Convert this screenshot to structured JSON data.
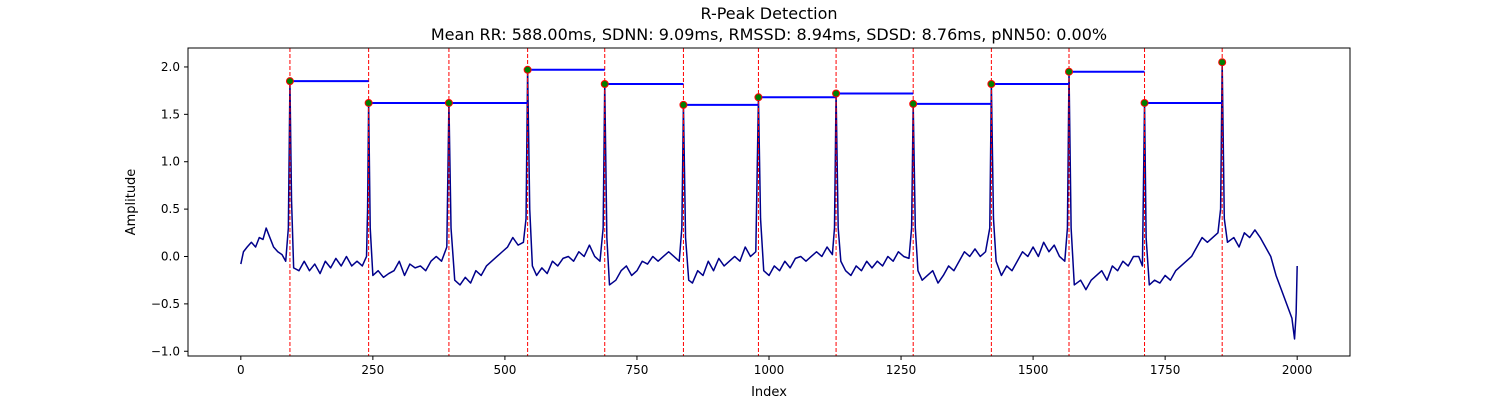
{
  "chart_data": {
    "type": "line",
    "title": "R-Peak Detection",
    "subtitle": "Mean RR: 588.00ms, SDNN: 9.09ms, RMSSD: 8.94ms, SDSD: 8.76ms, pNN50: 0.00%",
    "xlabel": "Index",
    "ylabel": "Amplitude",
    "xlim": [
      -100,
      2100
    ],
    "ylim": [
      -1.05,
      2.2
    ],
    "x_ticks": [
      0,
      250,
      500,
      750,
      1000,
      1250,
      1500,
      1750,
      2000
    ],
    "y_ticks": [
      -1.0,
      -0.5,
      0.0,
      0.5,
      1.0,
      1.5,
      2.0
    ],
    "x_tick_labels": [
      "0",
      "250",
      "500",
      "750",
      "1000",
      "1250",
      "1500",
      "1750",
      "2000"
    ],
    "y_tick_labels": [
      "−1.0",
      "−0.5",
      "0.0",
      "0.5",
      "1.0",
      "1.5",
      "2.0"
    ],
    "grid": false,
    "colors": {
      "signal": "#00008b",
      "peak_line": "#ff0000",
      "peak_marker": "#008000",
      "peak_marker_edge": "#ff0000",
      "rr_segment": "#0000ff"
    },
    "series": [
      {
        "kind": "ecg_signal",
        "points": [
          [
            0,
            -0.08
          ],
          [
            5,
            0.05
          ],
          [
            12,
            0.1
          ],
          [
            20,
            0.15
          ],
          [
            28,
            0.1
          ],
          [
            35,
            0.2
          ],
          [
            42,
            0.18
          ],
          [
            48,
            0.3
          ],
          [
            55,
            0.2
          ],
          [
            62,
            0.1
          ],
          [
            70,
            0.05
          ],
          [
            78,
            0.02
          ],
          [
            85,
            -0.05
          ],
          [
            90,
            0.3
          ],
          [
            93,
            1.85
          ],
          [
            96,
            0.6
          ],
          [
            100,
            -0.12
          ],
          [
            110,
            -0.15
          ],
          [
            120,
            -0.05
          ],
          [
            130,
            -0.15
          ],
          [
            140,
            -0.08
          ],
          [
            150,
            -0.18
          ],
          [
            160,
            -0.05
          ],
          [
            170,
            -0.12
          ],
          [
            180,
            -0.02
          ],
          [
            190,
            -0.1
          ],
          [
            200,
            0.0
          ],
          [
            210,
            -0.1
          ],
          [
            220,
            -0.05
          ],
          [
            230,
            -0.1
          ],
          [
            238,
            0.0
          ],
          [
            240,
            0.5
          ],
          [
            242,
            1.62
          ],
          [
            245,
            0.3
          ],
          [
            250,
            -0.2
          ],
          [
            260,
            -0.15
          ],
          [
            270,
            -0.22
          ],
          [
            280,
            -0.18
          ],
          [
            290,
            -0.15
          ],
          [
            300,
            -0.05
          ],
          [
            310,
            -0.2
          ],
          [
            320,
            -0.08
          ],
          [
            330,
            -0.12
          ],
          [
            340,
            -0.1
          ],
          [
            350,
            -0.15
          ],
          [
            360,
            -0.05
          ],
          [
            370,
            0.0
          ],
          [
            380,
            -0.05
          ],
          [
            390,
            0.1
          ],
          [
            394,
            1.62
          ],
          [
            398,
            0.3
          ],
          [
            405,
            -0.25
          ],
          [
            415,
            -0.3
          ],
          [
            425,
            -0.22
          ],
          [
            435,
            -0.28
          ],
          [
            445,
            -0.15
          ],
          [
            455,
            -0.2
          ],
          [
            465,
            -0.1
          ],
          [
            475,
            -0.05
          ],
          [
            485,
            0.0
          ],
          [
            495,
            0.05
          ],
          [
            505,
            0.1
          ],
          [
            515,
            0.2
          ],
          [
            525,
            0.12
          ],
          [
            535,
            0.15
          ],
          [
            540,
            0.4
          ],
          [
            543,
            1.97
          ],
          [
            547,
            0.5
          ],
          [
            552,
            -0.1
          ],
          [
            560,
            -0.2
          ],
          [
            570,
            -0.12
          ],
          [
            580,
            -0.18
          ],
          [
            590,
            -0.05
          ],
          [
            600,
            -0.1
          ],
          [
            610,
            -0.02
          ],
          [
            620,
            0.0
          ],
          [
            630,
            -0.05
          ],
          [
            640,
            0.05
          ],
          [
            650,
            0.0
          ],
          [
            660,
            0.12
          ],
          [
            670,
            0.0
          ],
          [
            680,
            -0.05
          ],
          [
            686,
            0.3
          ],
          [
            689,
            1.82
          ],
          [
            693,
            0.2
          ],
          [
            698,
            -0.3
          ],
          [
            710,
            -0.25
          ],
          [
            720,
            -0.15
          ],
          [
            730,
            -0.1
          ],
          [
            740,
            -0.2
          ],
          [
            750,
            -0.15
          ],
          [
            760,
            -0.05
          ],
          [
            770,
            -0.08
          ],
          [
            780,
            0.0
          ],
          [
            790,
            -0.05
          ],
          [
            800,
            0.0
          ],
          [
            810,
            0.05
          ],
          [
            820,
            0.0
          ],
          [
            830,
            -0.05
          ],
          [
            835,
            0.3
          ],
          [
            838,
            1.6
          ],
          [
            842,
            0.2
          ],
          [
            848,
            -0.25
          ],
          [
            855,
            -0.28
          ],
          [
            865,
            -0.15
          ],
          [
            875,
            -0.2
          ],
          [
            885,
            -0.05
          ],
          [
            895,
            -0.15
          ],
          [
            905,
            -0.02
          ],
          [
            915,
            -0.1
          ],
          [
            925,
            -0.05
          ],
          [
            935,
            0.0
          ],
          [
            945,
            -0.05
          ],
          [
            955,
            0.1
          ],
          [
            965,
            0.0
          ],
          [
            975,
            0.05
          ],
          [
            980,
            1.68
          ],
          [
            984,
            0.4
          ],
          [
            990,
            -0.15
          ],
          [
            1000,
            -0.2
          ],
          [
            1010,
            -0.1
          ],
          [
            1020,
            -0.15
          ],
          [
            1030,
            -0.05
          ],
          [
            1040,
            -0.12
          ],
          [
            1050,
            -0.02
          ],
          [
            1060,
            0.0
          ],
          [
            1070,
            -0.05
          ],
          [
            1080,
            0.0
          ],
          [
            1090,
            0.05
          ],
          [
            1100,
            0.0
          ],
          [
            1110,
            0.1
          ],
          [
            1120,
            0.02
          ],
          [
            1124,
            0.3
          ],
          [
            1127,
            1.72
          ],
          [
            1131,
            0.3
          ],
          [
            1136,
            -0.05
          ],
          [
            1145,
            -0.15
          ],
          [
            1155,
            -0.2
          ],
          [
            1165,
            -0.1
          ],
          [
            1175,
            -0.15
          ],
          [
            1185,
            -0.05
          ],
          [
            1195,
            -0.12
          ],
          [
            1205,
            -0.05
          ],
          [
            1215,
            -0.1
          ],
          [
            1225,
            0.0
          ],
          [
            1235,
            -0.05
          ],
          [
            1245,
            0.05
          ],
          [
            1255,
            0.0
          ],
          [
            1265,
            -0.02
          ],
          [
            1270,
            0.3
          ],
          [
            1273,
            1.61
          ],
          [
            1277,
            0.3
          ],
          [
            1282,
            -0.15
          ],
          [
            1290,
            -0.25
          ],
          [
            1300,
            -0.2
          ],
          [
            1310,
            -0.15
          ],
          [
            1320,
            -0.28
          ],
          [
            1330,
            -0.2
          ],
          [
            1340,
            -0.1
          ],
          [
            1350,
            -0.15
          ],
          [
            1360,
            -0.05
          ],
          [
            1370,
            0.05
          ],
          [
            1380,
            0.0
          ],
          [
            1390,
            0.08
          ],
          [
            1400,
            0.0
          ],
          [
            1410,
            0.05
          ],
          [
            1418,
            0.3
          ],
          [
            1421,
            1.82
          ],
          [
            1425,
            0.4
          ],
          [
            1430,
            -0.05
          ],
          [
            1440,
            -0.2
          ],
          [
            1450,
            -0.1
          ],
          [
            1460,
            -0.15
          ],
          [
            1470,
            -0.05
          ],
          [
            1480,
            0.05
          ],
          [
            1490,
            0.0
          ],
          [
            1500,
            0.1
          ],
          [
            1510,
            0.0
          ],
          [
            1520,
            0.15
          ],
          [
            1530,
            0.05
          ],
          [
            1540,
            0.12
          ],
          [
            1550,
            0.0
          ],
          [
            1560,
            -0.05
          ],
          [
            1565,
            0.3
          ],
          [
            1568,
            1.95
          ],
          [
            1572,
            0.3
          ],
          [
            1578,
            -0.3
          ],
          [
            1590,
            -0.25
          ],
          [
            1600,
            -0.35
          ],
          [
            1610,
            -0.25
          ],
          [
            1620,
            -0.2
          ],
          [
            1630,
            -0.15
          ],
          [
            1640,
            -0.25
          ],
          [
            1650,
            -0.1
          ],
          [
            1660,
            -0.15
          ],
          [
            1670,
            -0.05
          ],
          [
            1680,
            -0.1
          ],
          [
            1690,
            0.0
          ],
          [
            1700,
            0.0
          ],
          [
            1707,
            -0.1
          ],
          [
            1711,
            1.62
          ],
          [
            1714,
            0.2
          ],
          [
            1720,
            -0.3
          ],
          [
            1730,
            -0.25
          ],
          [
            1740,
            -0.28
          ],
          [
            1750,
            -0.2
          ],
          [
            1760,
            -0.25
          ],
          [
            1770,
            -0.15
          ],
          [
            1780,
            -0.1
          ],
          [
            1790,
            -0.05
          ],
          [
            1800,
            0.0
          ],
          [
            1810,
            0.1
          ],
          [
            1820,
            0.2
          ],
          [
            1830,
            0.15
          ],
          [
            1840,
            0.2
          ],
          [
            1850,
            0.25
          ],
          [
            1855,
            0.5
          ],
          [
            1858,
            2.05
          ],
          [
            1862,
            0.4
          ],
          [
            1868,
            0.15
          ],
          [
            1880,
            0.2
          ],
          [
            1890,
            0.1
          ],
          [
            1900,
            0.25
          ],
          [
            1910,
            0.2
          ],
          [
            1920,
            0.28
          ],
          [
            1930,
            0.2
          ],
          [
            1940,
            0.1
          ],
          [
            1950,
            0.0
          ],
          [
            1960,
            -0.2
          ],
          [
            1970,
            -0.35
          ],
          [
            1980,
            -0.5
          ],
          [
            1990,
            -0.65
          ],
          [
            1995,
            -0.87
          ],
          [
            1998,
            -0.6
          ],
          [
            2000,
            -0.1
          ]
        ]
      },
      {
        "kind": "r_peaks",
        "x": [
          93,
          242,
          394,
          543,
          689,
          838,
          980,
          1127,
          1273,
          1421,
          1568,
          1711,
          1858
        ],
        "y": [
          1.85,
          1.62,
          1.62,
          1.97,
          1.82,
          1.6,
          1.68,
          1.72,
          1.61,
          1.82,
          1.95,
          1.62,
          2.05
        ]
      }
    ]
  }
}
